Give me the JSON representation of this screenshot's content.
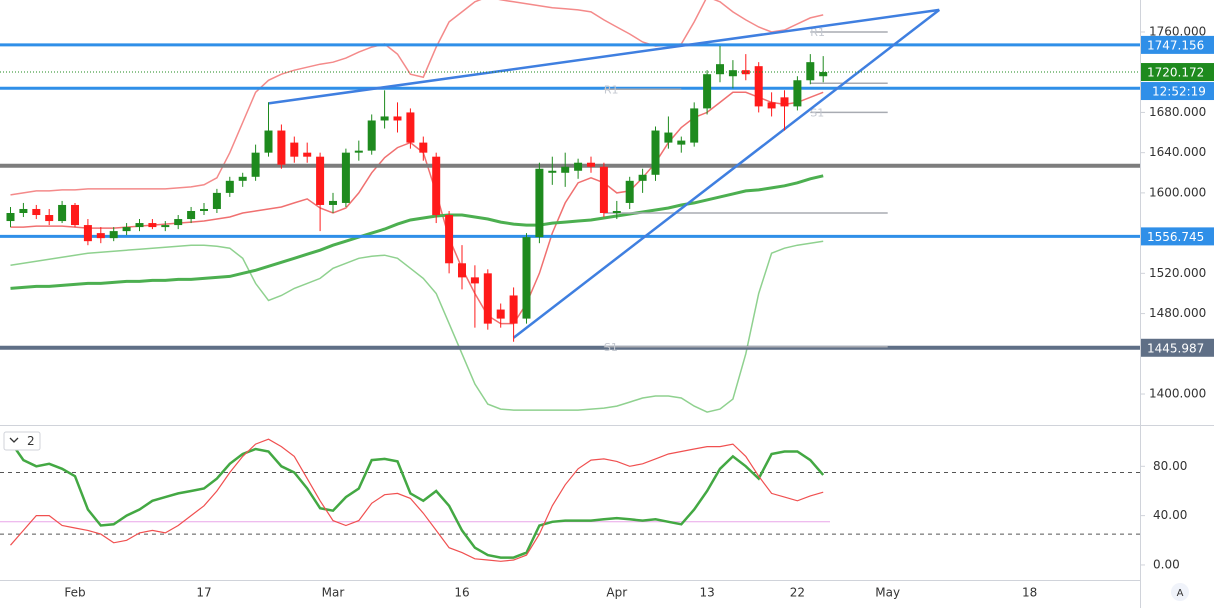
{
  "chart_data": {
    "type": "candlestick",
    "categories": [
      null,
      null,
      null,
      null,
      null,
      "Feb",
      null,
      null,
      null,
      null,
      null,
      null,
      null,
      null,
      null,
      "17",
      null,
      null,
      null,
      null,
      null,
      null,
      null,
      null,
      null,
      "Mar",
      null,
      null,
      null,
      null,
      null,
      null,
      null,
      null,
      null,
      "16",
      null,
      null,
      null,
      null,
      null,
      null,
      null,
      null,
      null,
      null,
      null,
      "Apr",
      null,
      null,
      null,
      null,
      null,
      null,
      "13",
      null,
      null,
      null,
      null,
      null,
      null,
      "22",
      null,
      null,
      null,
      null,
      null,
      null,
      "May",
      null,
      null,
      null,
      null,
      null,
      null,
      null,
      null,
      null,
      null,
      "18",
      null,
      null
    ],
    "open": [
      1572,
      1580,
      1584,
      1578,
      1572,
      1588,
      1568,
      1560,
      1555,
      1562,
      1566,
      1570,
      1566,
      1568,
      1574,
      1582,
      1584,
      1600,
      1612,
      1616,
      1640,
      1662,
      1650,
      1640,
      1636,
      1588,
      1590,
      1640,
      1642,
      1672,
      1676,
      1680,
      1650,
      1636,
      1578,
      1530,
      1516,
      1520,
      1484,
      1498,
      1475,
      1556,
      1620,
      1620,
      1622,
      1630,
      1626,
      1580,
      1590,
      1612,
      1618,
      1650,
      1648,
      1650,
      1684,
      1718,
      1716,
      1722,
      1726,
      1690,
      1695,
      1686,
      1712,
      1716,
      null,
      null,
      null,
      null,
      null,
      null,
      null,
      null,
      null,
      null,
      null,
      null,
      null,
      null,
      null,
      null,
      null,
      null
    ],
    "high": [
      1586,
      1590,
      1588,
      1584,
      1592,
      1590,
      1574,
      1566,
      1566,
      1570,
      1574,
      1574,
      1572,
      1578,
      1586,
      1590,
      1604,
      1616,
      1620,
      1648,
      1690,
      1668,
      1656,
      1650,
      1640,
      1600,
      1644,
      1652,
      1678,
      1702,
      1690,
      1684,
      1656,
      1640,
      1582,
      1548,
      1528,
      1524,
      1490,
      1506,
      1560,
      1630,
      1636,
      1640,
      1634,
      1636,
      1630,
      1592,
      1616,
      1624,
      1666,
      1676,
      1656,
      1690,
      1722,
      1746,
      1732,
      1738,
      1730,
      1700,
      1702,
      1716,
      1738,
      1736,
      null,
      null,
      null,
      null,
      null,
      null,
      null,
      null,
      null,
      null,
      null,
      null,
      null,
      null,
      null,
      null,
      null,
      null
    ],
    "low": [
      1566,
      1576,
      1574,
      1568,
      1570,
      1566,
      1548,
      1550,
      1552,
      1558,
      1562,
      1564,
      1562,
      1564,
      1570,
      1578,
      1580,
      1596,
      1606,
      1612,
      1636,
      1624,
      1630,
      1630,
      1562,
      1580,
      1586,
      1632,
      1638,
      1664,
      1660,
      1644,
      1632,
      1570,
      1520,
      1504,
      1466,
      1464,
      1466,
      1452,
      1470,
      1550,
      1608,
      1606,
      1614,
      1620,
      1576,
      1574,
      1584,
      1600,
      1612,
      1644,
      1640,
      1646,
      1678,
      1710,
      1704,
      1712,
      1680,
      1676,
      1662,
      1682,
      1708,
      1710,
      null,
      null,
      null,
      null,
      null,
      null,
      null,
      null,
      null,
      null,
      null,
      null,
      null,
      null,
      null,
      null,
      null,
      null
    ],
    "close": [
      1580,
      1584,
      1578,
      1572,
      1588,
      1568,
      1552,
      1555,
      1562,
      1566,
      1570,
      1566,
      1568,
      1574,
      1582,
      1584,
      1600,
      1612,
      1616,
      1640,
      1662,
      1628,
      1636,
      1636,
      1588,
      1592,
      1640,
      1642,
      1672,
      1676,
      1672,
      1650,
      1640,
      1578,
      1530,
      1516,
      1510,
      1470,
      1475,
      1470,
      1556,
      1624,
      1622,
      1626,
      1630,
      1626,
      1580,
      1582,
      1612,
      1618,
      1662,
      1660,
      1652,
      1684,
      1718,
      1728,
      1722,
      1718,
      1686,
      1684,
      1686,
      1712,
      1730,
      1720.172,
      null,
      null,
      null,
      null,
      null,
      null,
      null,
      null,
      null,
      null,
      null,
      null,
      null,
      null,
      null,
      null,
      null,
      null
    ],
    "up_color": "#1e8a1e",
    "down_color": "#ff1a1a",
    "series": [
      {
        "color": "#8fd18f",
        "width": 1.5,
        "values": [
          1528,
          1530,
          1532,
          1534,
          1536,
          1538,
          1540,
          1541,
          1542,
          1543,
          1544,
          1545,
          1546,
          1547,
          1548,
          1548,
          1547,
          1545,
          1535,
          1510,
          1493,
          1498,
          1505,
          1510,
          1515,
          1525,
          1530,
          1535,
          1537,
          1538,
          1535,
          1525,
          1515,
          1500,
          1470,
          1440,
          1410,
          1390,
          1385,
          1384,
          1384,
          1384,
          1384,
          1384,
          1384,
          1385,
          1386,
          1388,
          1392,
          1396,
          1398,
          1398,
          1396,
          1388,
          1382,
          1385,
          1395,
          1440,
          1500,
          1540,
          1545,
          1548,
          1550,
          1552,
          null,
          null,
          null,
          null,
          null,
          null,
          null,
          null,
          null,
          null,
          null,
          null,
          null,
          null,
          null,
          null,
          null,
          null
        ]
      },
      {
        "color": "#f48a8a",
        "width": 1.5,
        "values": [
          1598,
          1600,
          1602,
          1602,
          1603,
          1603,
          1604,
          1604,
          1604,
          1604,
          1604,
          1604,
          1604,
          1605,
          1606,
          1608,
          1615,
          1640,
          1670,
          1700,
          1712,
          1718,
          1722,
          1725,
          1728,
          1730,
          1734,
          1740,
          1745,
          1748,
          1738,
          1718,
          1715,
          1745,
          1770,
          1780,
          1790,
          1795,
          1792,
          1790,
          1788,
          1786,
          1784,
          1783,
          1782,
          1780,
          1772,
          1765,
          1758,
          1750,
          1746,
          1747,
          1748,
          1770,
          1795,
          1790,
          1780,
          1772,
          1765,
          1760,
          1762,
          1768,
          1774,
          1777,
          null,
          null,
          null,
          null,
          null,
          null,
          null,
          null,
          null,
          null,
          null,
          null,
          null,
          null,
          null,
          null,
          null,
          null
        ]
      },
      {
        "color": "#f07070",
        "width": 1.5,
        "values": [
          1566,
          1566,
          1567,
          1567,
          1567,
          1566,
          1565,
          1565,
          1565,
          1566,
          1567,
          1568,
          1569,
          1570,
          1571,
          1572,
          1574,
          1576,
          1580,
          1582,
          1584,
          1586,
          1590,
          1594,
          1585,
          1580,
          1585,
          1600,
          1620,
          1635,
          1645,
          1650,
          1640,
          1600,
          1555,
          1525,
          1500,
          1478,
          1470,
          1470,
          1490,
          1520,
          1560,
          1590,
          1610,
          1615,
          1610,
          1600,
          1602,
          1615,
          1630,
          1650,
          1665,
          1675,
          1680,
          1690,
          1700,
          1700,
          1695,
          1690,
          1688,
          1690,
          1695,
          1700,
          null,
          null,
          null,
          null,
          null,
          null,
          null,
          null,
          null,
          null,
          null,
          null,
          null,
          null,
          null,
          null,
          null,
          null
        ]
      },
      {
        "color": "#4caf50",
        "width": 3,
        "values": [
          1505,
          1506,
          1507,
          1507,
          1508,
          1509,
          1510,
          1510,
          1511,
          1512,
          1512,
          1513,
          1513,
          1514,
          1514,
          1515,
          1516,
          1517,
          1520,
          1523,
          1527,
          1531,
          1535,
          1539,
          1543,
          1548,
          1552,
          1556,
          1560,
          1564,
          1569,
          1573,
          1575,
          1577,
          1578,
          1578,
          1576,
          1574,
          1571,
          1569,
          1568,
          1568,
          1570,
          1571,
          1572,
          1573,
          1575,
          1577,
          1579,
          1581,
          1583,
          1585,
          1588,
          1590,
          1593,
          1596,
          1599,
          1602,
          1603,
          1605,
          1607,
          1610,
          1614,
          1617,
          null,
          null,
          null,
          null,
          null,
          null,
          null,
          null,
          null,
          null,
          null,
          null,
          null,
          null,
          null,
          null,
          null,
          null
        ]
      }
    ],
    "ylim": [
      1369.2,
      1791.8
    ],
    "yticks": [
      {
        "value": 1400,
        "label": "1400.000"
      },
      {
        "value": 1480,
        "label": "1480.000"
      },
      {
        "value": 1520,
        "label": "1520.000"
      },
      {
        "value": 1600,
        "label": "1600.000"
      },
      {
        "value": 1640,
        "label": "1640.000"
      },
      {
        "value": 1680,
        "label": "1680.000"
      },
      {
        "value": 1760,
        "label": "1760.000"
      }
    ],
    "hlines": [
      {
        "value": 1747.156,
        "color": "#2f8fe8",
        "width": 3,
        "label": true
      },
      {
        "value": 1704,
        "color": "#2f8fe8",
        "width": 3,
        "label": false
      },
      {
        "value": 1627,
        "color": "#7d7d7d",
        "width": 4,
        "label": false
      },
      {
        "value": 1556.745,
        "color": "#2f8fe8",
        "width": 3,
        "label": true
      },
      {
        "value": 1445.987,
        "color": "#5f6f86",
        "width": 4,
        "label": true
      }
    ],
    "countdown": "12:52:19",
    "pivots": [
      {
        "name": "R1",
        "value": 1760,
        "x": [
          62,
          68
        ]
      },
      {
        "value": 1709,
        "x": [
          62,
          68
        ]
      },
      {
        "name": "S1",
        "value": 1680,
        "x": [
          62,
          68
        ]
      },
      {
        "name": "R1",
        "value": 1703,
        "x": [
          46,
          52
        ]
      },
      {
        "value": 1580,
        "x": [
          46,
          68
        ]
      },
      {
        "name": "S1",
        "value": 1447,
        "x": [
          46,
          68
        ]
      }
    ],
    "trendlines": [
      {
        "x": [
          20,
          72
        ],
        "y": [
          1689,
          1782
        ],
        "color": "#3f7fe0"
      },
      {
        "x": [
          39,
          72
        ],
        "y": [
          1456,
          1782
        ],
        "color": "#3f7fe0"
      }
    ],
    "oscillator": {
      "label": "2",
      "ylim": [
        -12.2,
        113.5
      ],
      "yticks": [
        {
          "value": 0,
          "label": "0.00"
        },
        {
          "value": 40,
          "label": "40.00"
        },
        {
          "value": 80,
          "label": "80.00"
        }
      ],
      "levels": [
        75,
        25
      ],
      "midline": 35,
      "series": [
        {
          "color": "#43a843",
          "width": 2.5,
          "values": [
            100,
            85,
            80,
            82,
            78,
            72,
            45,
            32,
            33,
            40,
            45,
            52,
            55,
            58,
            60,
            62,
            70,
            82,
            90,
            94,
            92,
            80,
            75,
            62,
            46,
            44,
            55,
            62,
            85,
            86,
            84,
            58,
            52,
            60,
            48,
            28,
            14,
            8,
            6,
            6,
            10,
            32,
            35,
            36,
            36,
            36,
            37,
            38,
            37,
            36,
            37,
            35,
            33,
            45,
            60,
            78,
            88,
            80,
            70,
            90,
            92,
            92,
            85,
            73,
            null,
            null,
            null,
            null,
            null,
            null,
            null,
            null,
            null,
            null,
            null,
            null,
            null,
            null,
            null,
            null,
            null,
            null
          ]
        },
        {
          "color": "#f05050",
          "width": 1.2,
          "values": [
            16,
            28,
            40,
            40,
            32,
            30,
            28,
            25,
            18,
            20,
            26,
            28,
            26,
            32,
            40,
            48,
            60,
            75,
            88,
            98,
            102,
            96,
            88,
            70,
            52,
            36,
            32,
            36,
            50,
            57,
            58,
            54,
            42,
            28,
            14,
            10,
            5,
            4,
            3,
            4,
            8,
            25,
            48,
            65,
            78,
            85,
            86,
            84,
            80,
            82,
            86,
            90,
            92,
            94,
            96,
            96,
            98,
            88,
            72,
            58,
            55,
            52,
            56,
            59,
            null,
            null,
            null,
            null,
            null,
            null,
            null,
            null,
            null,
            null,
            null,
            null,
            null,
            null,
            null,
            null,
            null,
            null
          ]
        }
      ]
    },
    "auto_button": "A"
  }
}
